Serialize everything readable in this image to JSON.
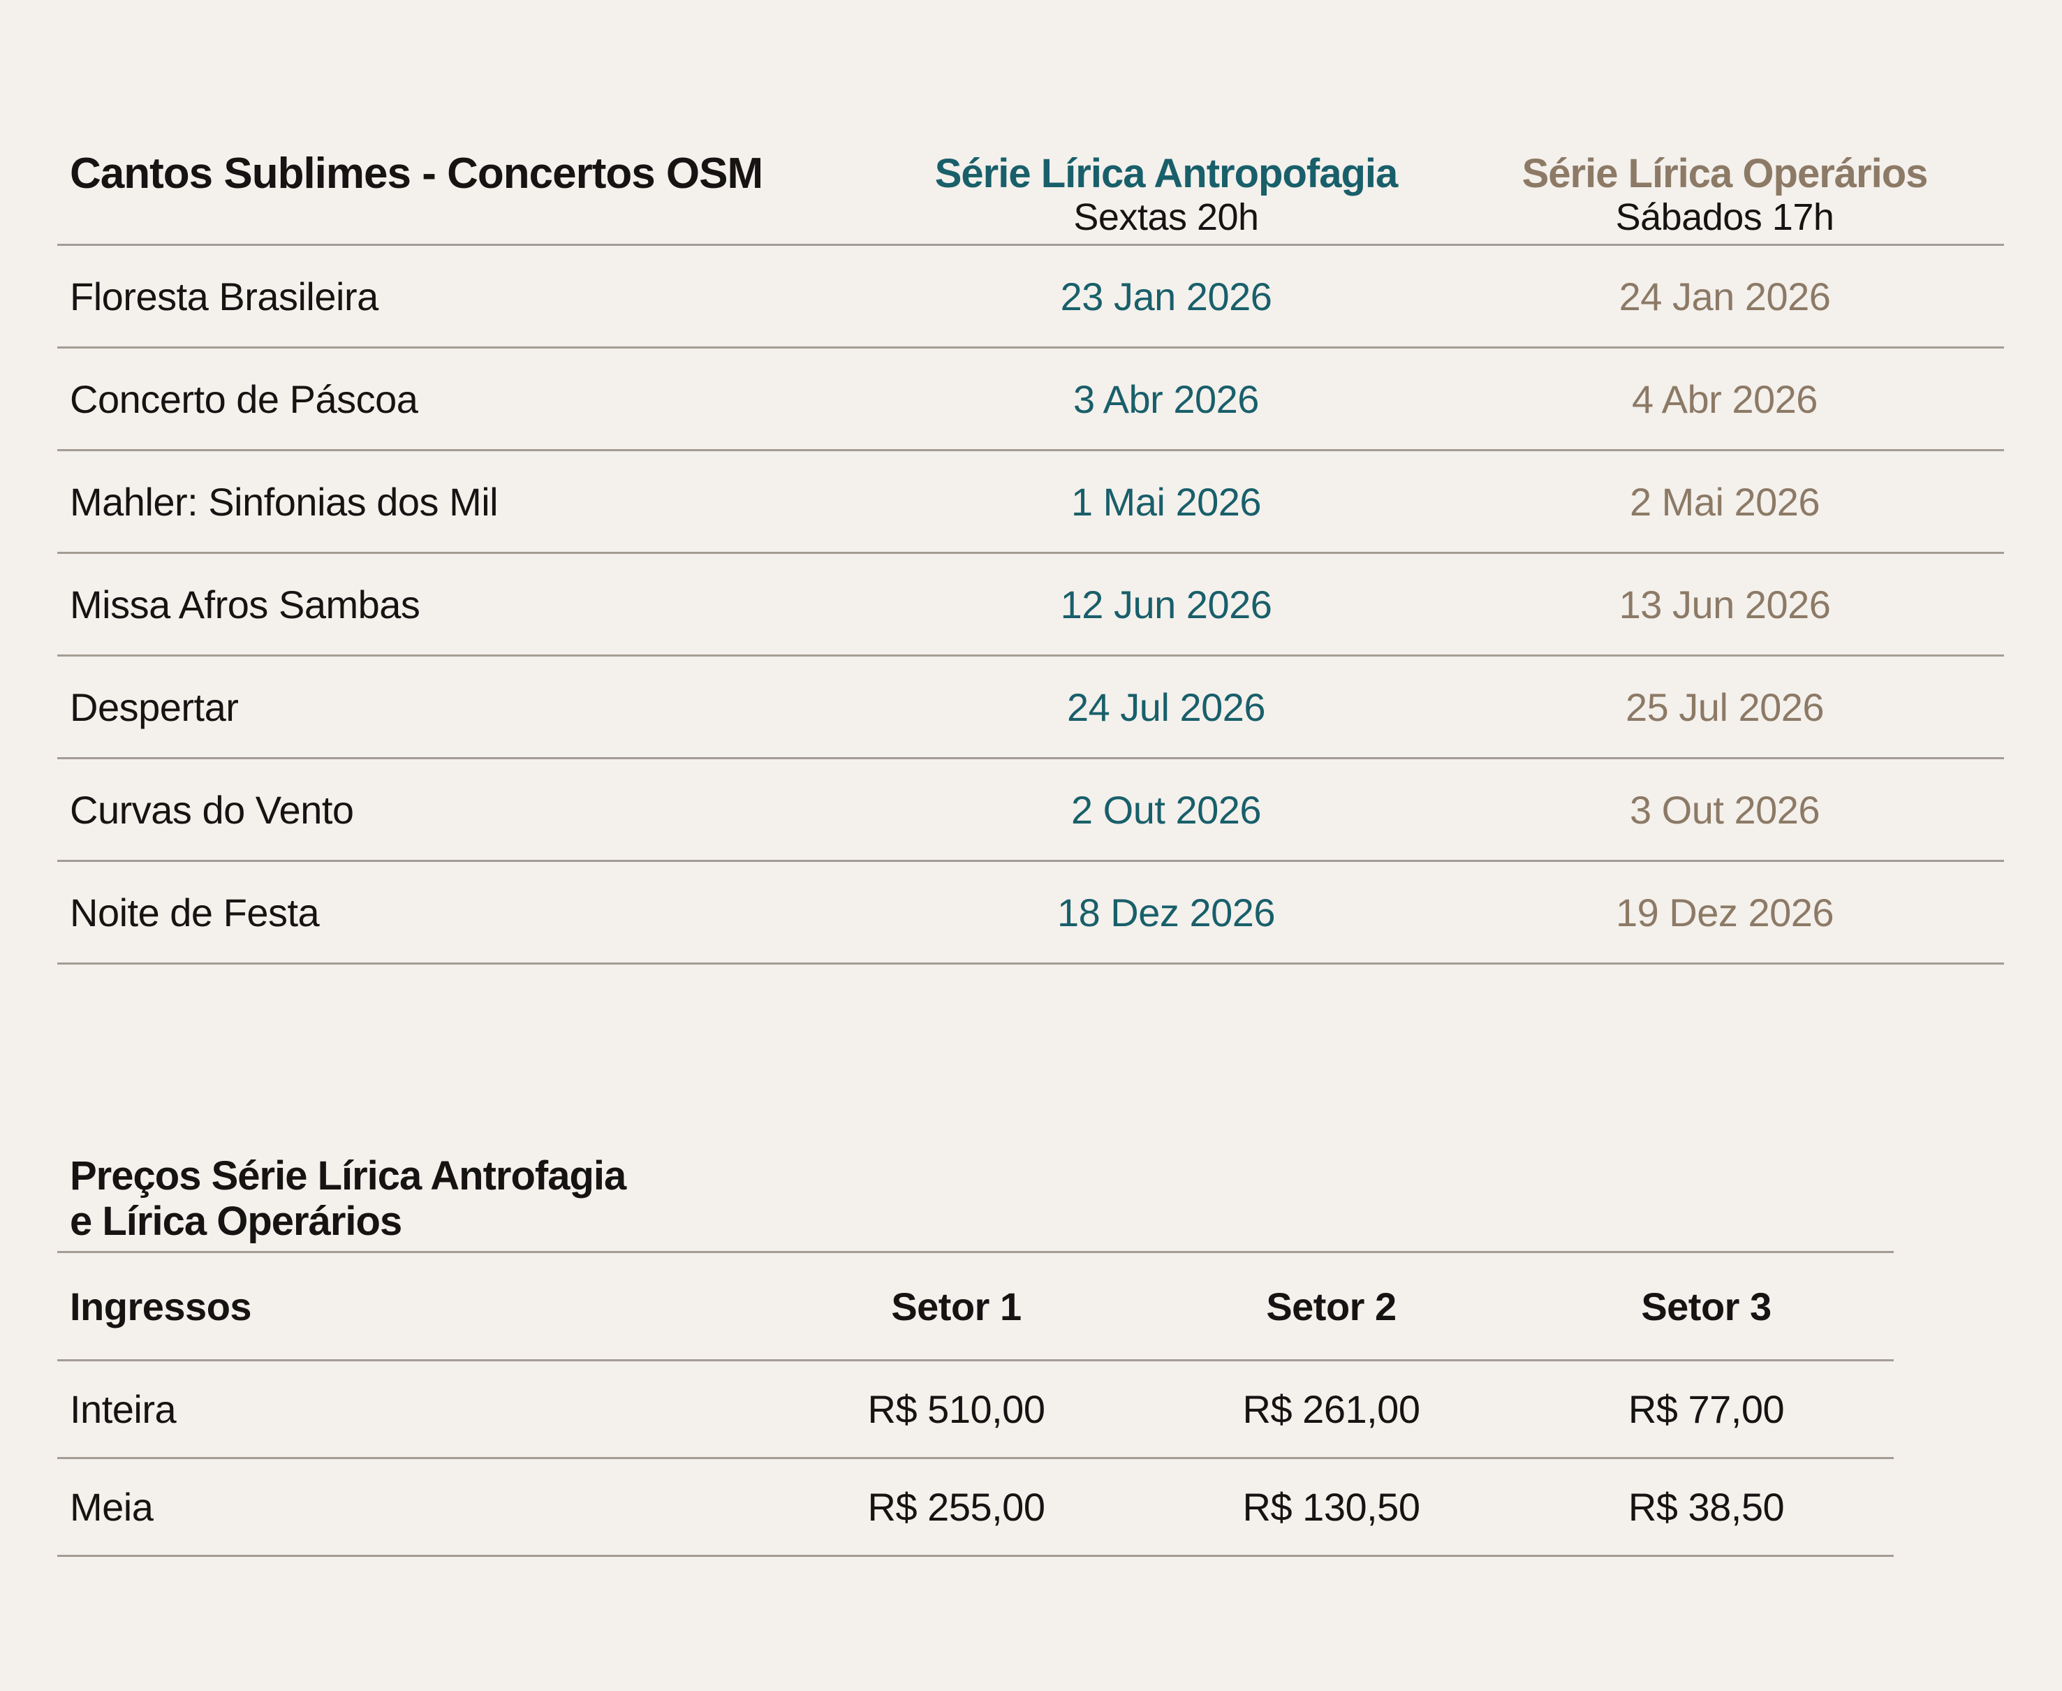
{
  "page": {
    "background": "#f4f0ec",
    "divider_color": "#a39c94",
    "accent_teal": "#185f6a",
    "accent_taupe": "#8c7a66"
  },
  "schedule_table": {
    "title": "Cantos Sublimes - Concertos OSM",
    "columns": [
      {
        "label": "Série Lírica Antropofagia",
        "sublabel": "Sextas 20h",
        "color": "#185f6a"
      },
      {
        "label": "Série Lírica Operários",
        "sublabel": "Sábados 17h",
        "color": "#8c7a66"
      }
    ],
    "rows": [
      {
        "concert": "Floresta Brasileira",
        "antropofagia_date": "23 Jan 2026",
        "operarios_date": "24 Jan 2026"
      },
      {
        "concert": "Concerto de Páscoa",
        "antropofagia_date": "3 Abr 2026",
        "operarios_date": "4 Abr 2026"
      },
      {
        "concert": "Mahler: Sinfonias dos Mil",
        "antropofagia_date": "1 Mai 2026",
        "operarios_date": "2 Mai 2026"
      },
      {
        "concert": "Missa Afros Sambas",
        "antropofagia_date": "12 Jun 2026",
        "operarios_date": "13 Jun 2026"
      },
      {
        "concert": "Despertar",
        "antropofagia_date": "24 Jul 2026",
        "operarios_date": "25 Jul 2026"
      },
      {
        "concert": "Curvas do Vento",
        "antropofagia_date": "2 Out 2026",
        "operarios_date": "3 Out 2026"
      },
      {
        "concert": "Noite de Festa",
        "antropofagia_date": "18 Dez 2026",
        "operarios_date": "19 Dez 2026"
      }
    ]
  },
  "price_table": {
    "title_line1": "Preços Série Lírica Antrofagia",
    "title_line2": "e Lírica Operários",
    "header": {
      "label": "Ingressos",
      "sectors": [
        "Setor 1",
        "Setor 2",
        "Setor 3"
      ]
    },
    "rows": [
      {
        "label": "Inteira",
        "prices": [
          "R$ 510,00",
          "R$ 261,00",
          "R$ 77,00"
        ]
      },
      {
        "label": "Meia",
        "prices": [
          "R$ 255,00",
          "R$ 130,50",
          "R$ 38,50"
        ]
      }
    ]
  }
}
